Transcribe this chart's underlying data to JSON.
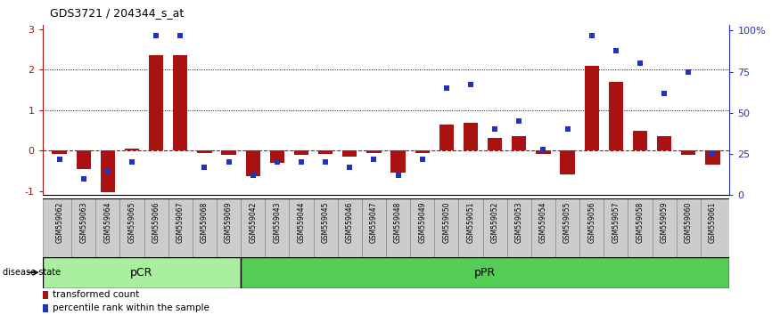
{
  "title": "GDS3721 / 204344_s_at",
  "samples": [
    "GSM559062",
    "GSM559063",
    "GSM559064",
    "GSM559065",
    "GSM559066",
    "GSM559067",
    "GSM559068",
    "GSM559069",
    "GSM559042",
    "GSM559043",
    "GSM559044",
    "GSM559045",
    "GSM559046",
    "GSM559047",
    "GSM559048",
    "GSM559049",
    "GSM559050",
    "GSM559051",
    "GSM559052",
    "GSM559053",
    "GSM559054",
    "GSM559055",
    "GSM559056",
    "GSM559057",
    "GSM559058",
    "GSM559059",
    "GSM559060",
    "GSM559061"
  ],
  "red_bars": [
    -0.07,
    -0.45,
    -1.02,
    0.05,
    2.35,
    2.35,
    -0.05,
    -0.1,
    -0.62,
    -0.3,
    -0.1,
    -0.08,
    -0.15,
    -0.05,
    -0.55,
    -0.05,
    0.65,
    0.7,
    0.32,
    0.35,
    -0.08,
    -0.58,
    2.1,
    1.7,
    0.5,
    0.35,
    -0.1,
    -0.35
  ],
  "blue_dots": [
    22,
    10,
    15,
    20,
    97,
    97,
    17,
    20,
    12,
    20,
    20,
    20,
    17,
    22,
    12,
    22,
    65,
    67,
    40,
    45,
    28,
    40,
    97,
    88,
    80,
    62,
    75,
    25
  ],
  "pCR_count": 8,
  "ylim_left": [
    -1.1,
    3.1
  ],
  "ylim_right": [
    0,
    103.3
  ],
  "right_ticks": [
    0,
    25,
    50,
    75,
    100
  ],
  "right_tick_labels": [
    "0",
    "25",
    "50",
    "75",
    "100%"
  ],
  "left_ticks": [
    -1,
    0,
    1,
    2,
    3
  ],
  "left_tick_labels": [
    "-1",
    "0",
    "1",
    "2",
    "3"
  ],
  "bar_color": "#AA1111",
  "dot_color": "#2233BB",
  "pCR_color": "#AAEEA0",
  "pPR_color": "#55CC55",
  "label_bg_color": "#CCCCCC",
  "dotted_lines": [
    1,
    2
  ]
}
